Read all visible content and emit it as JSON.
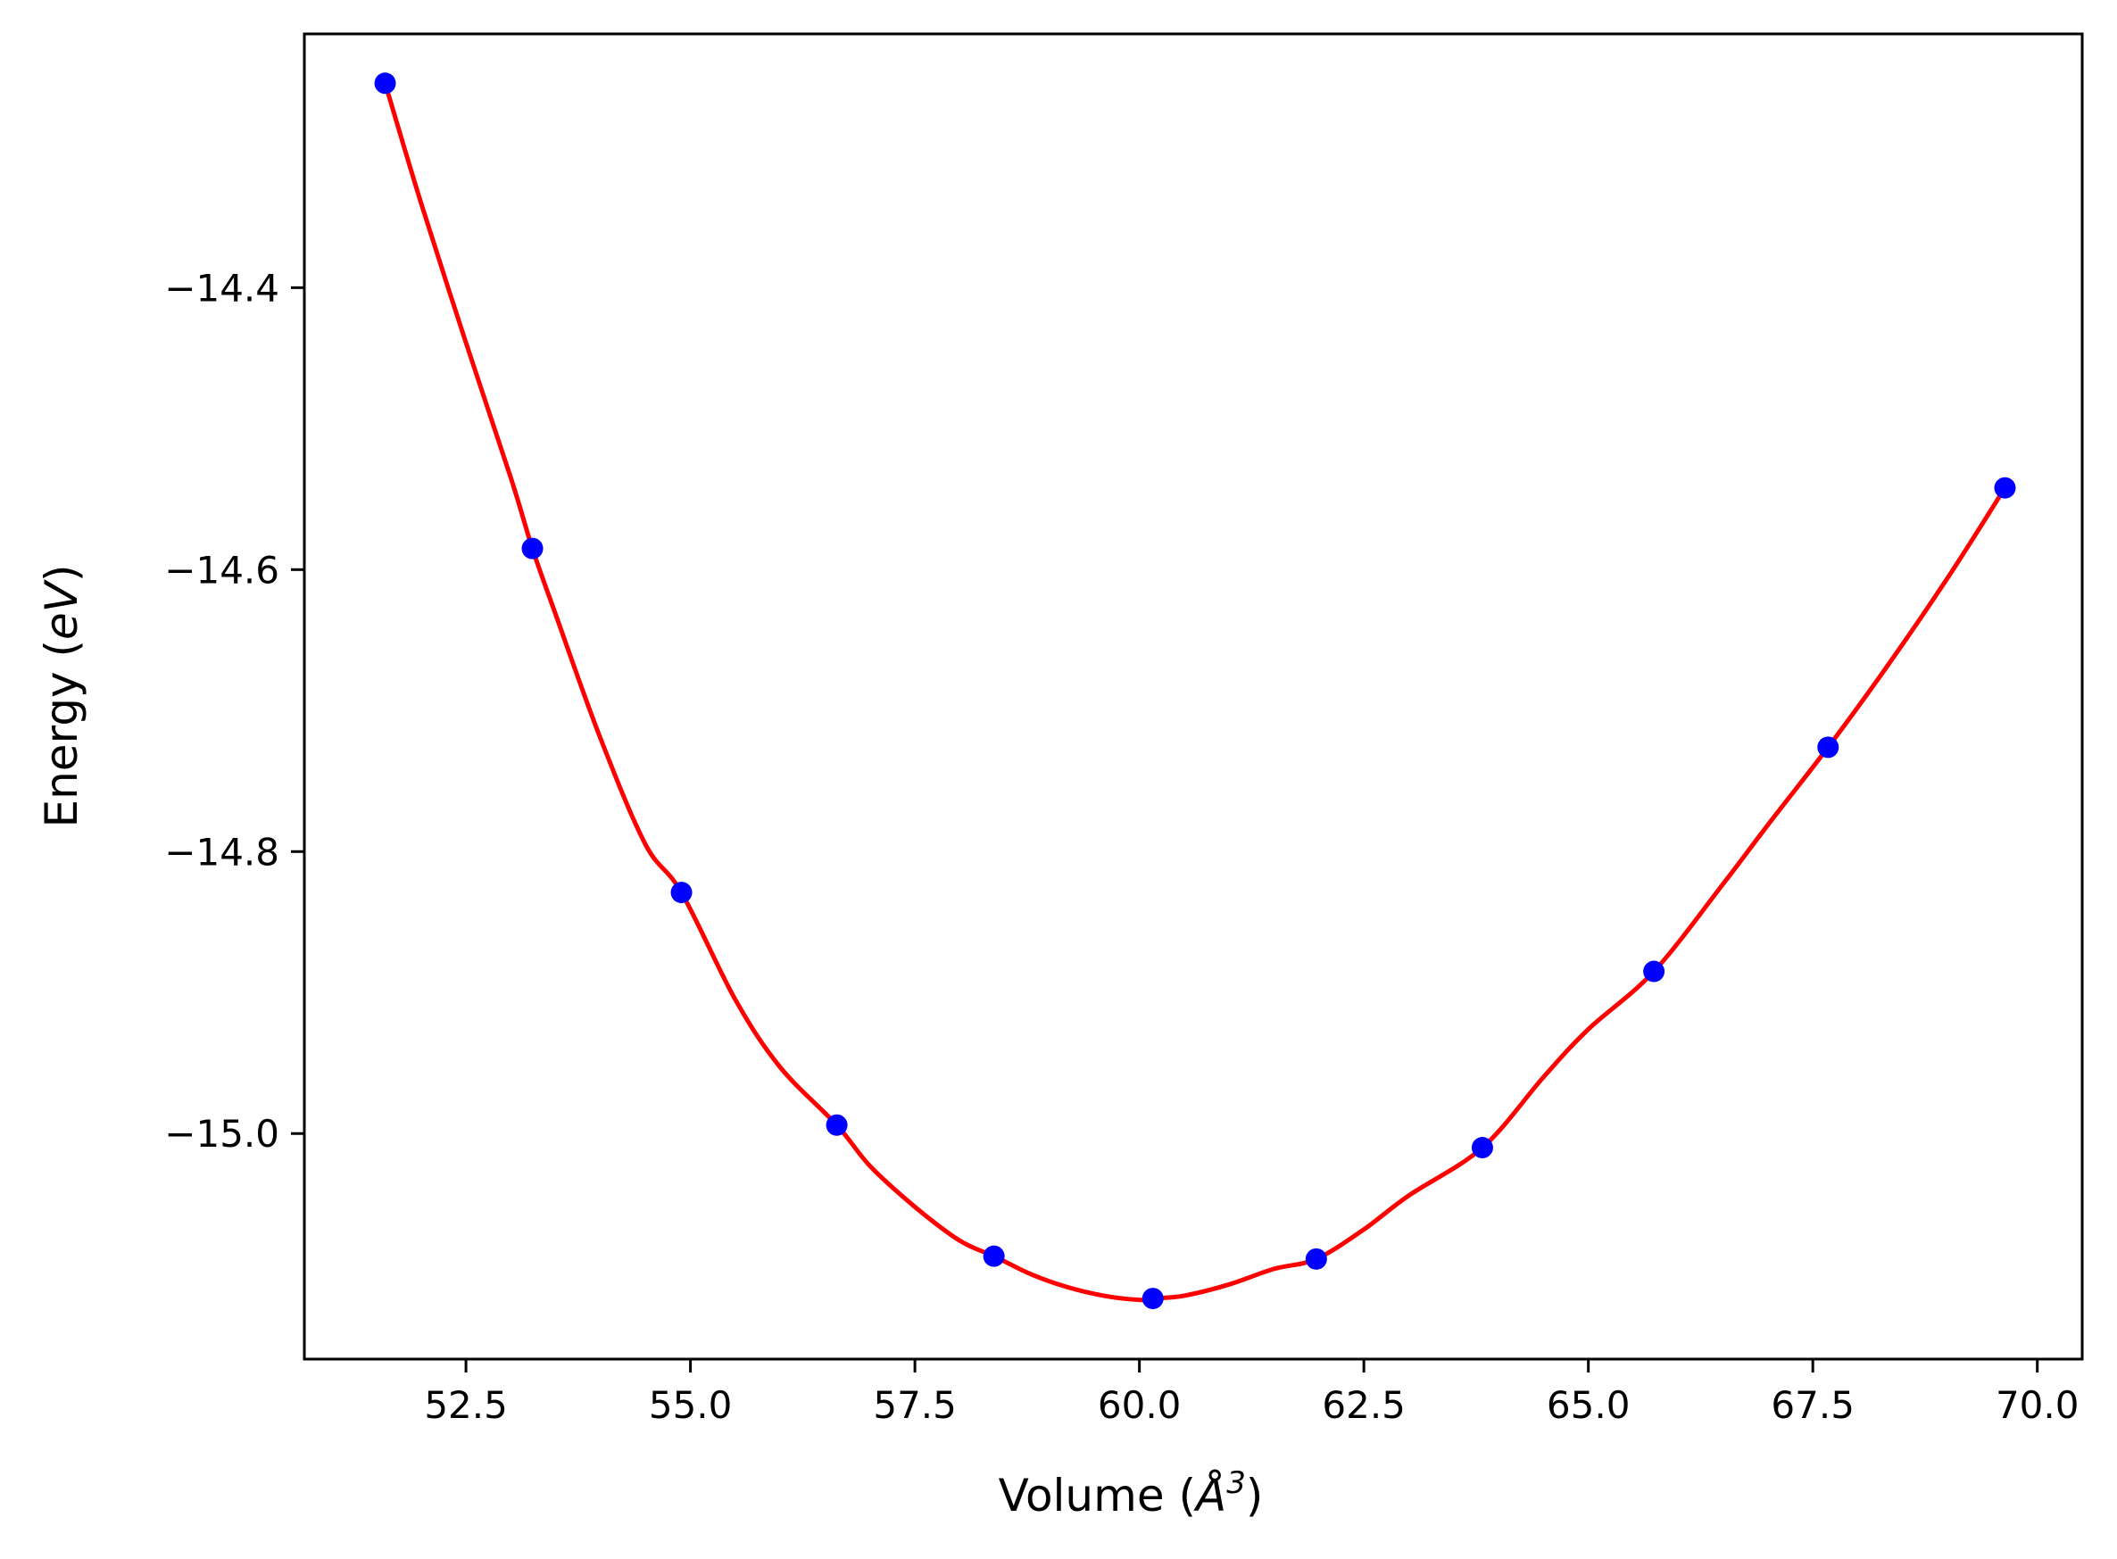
{
  "chart_data": {
    "type": "line",
    "xlabel": "Volume (",
    "xlabel_unit": "Å",
    "xlabel_unit_power": "3",
    "xlabel_close": ")",
    "ylabel": "Energy (",
    "ylabel_unit": "eV",
    "ylabel_close": ")",
    "xlim": [
      50.7,
      70.5
    ],
    "ylim": [
      -15.16,
      -14.22
    ],
    "x_ticks": [
      52.5,
      55.0,
      57.5,
      60.0,
      62.5,
      65.0,
      67.5,
      70.0
    ],
    "x_tick_labels": [
      "52.5",
      "55.0",
      "57.5",
      "60.0",
      "62.5",
      "65.0",
      "67.5",
      "70.0"
    ],
    "y_ticks": [
      -14.4,
      -14.6,
      -14.8,
      -15.0
    ],
    "y_tick_labels": [
      "−14.4",
      "−14.6",
      "−14.8",
      "−15.0"
    ],
    "grid": false,
    "series": [
      {
        "kind": "points",
        "color": "#0000ff",
        "x": [
          51.6,
          53.24,
          54.9,
          56.63,
          58.38,
          60.15,
          61.97,
          63.82,
          65.73,
          67.67,
          69.64
        ],
        "y": [
          -14.255,
          -14.585,
          -14.829,
          -14.994,
          -15.087,
          -15.117,
          -15.089,
          -15.01,
          -14.885,
          -14.726,
          -14.542
        ]
      },
      {
        "kind": "fit-curve",
        "color": "#ff0000",
        "x": [
          51.6,
          52.0,
          52.5,
          53.0,
          53.24,
          53.5,
          54.0,
          54.5,
          54.9,
          55.5,
          56.0,
          56.63,
          57.0,
          57.5,
          58.0,
          58.38,
          58.8,
          59.2,
          59.6,
          60.0,
          60.15,
          60.5,
          61.0,
          61.5,
          61.97,
          62.5,
          63.0,
          63.82,
          64.5,
          65.0,
          65.73,
          66.5,
          67.0,
          67.67,
          68.3,
          69.0,
          69.64
        ],
        "y": [
          -14.255,
          -14.34,
          -14.439,
          -14.535,
          -14.585,
          -14.632,
          -14.72,
          -14.795,
          -14.829,
          -14.905,
          -14.953,
          -14.994,
          -15.023,
          -15.052,
          -15.076,
          -15.087,
          -15.1,
          -15.109,
          -15.115,
          -15.118,
          -15.117,
          -15.115,
          -15.107,
          -15.096,
          -15.089,
          -15.068,
          -15.044,
          -15.01,
          -14.96,
          -14.926,
          -14.885,
          -14.823,
          -14.781,
          -14.726,
          -14.671,
          -14.606,
          -14.542
        ]
      }
    ]
  },
  "colors": {
    "points": "#0000ff",
    "curve": "#ff0000",
    "axes": "#000000",
    "background": "#ffffff"
  }
}
